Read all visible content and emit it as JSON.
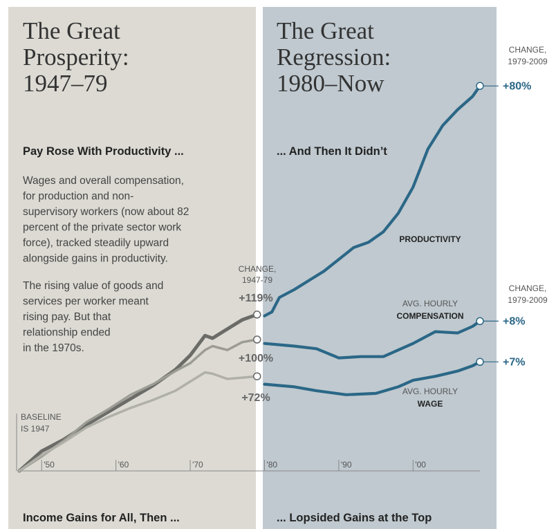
{
  "panels": [
    {
      "title_lines": [
        "The Great",
        "Prosperity:",
        "1947–79"
      ],
      "subhead": "Pay Rose With Productivity ...",
      "bottom": "Income Gains for All, Then ..."
    },
    {
      "title_lines": [
        "The Great",
        "Regression:",
        "1980–Now"
      ],
      "subhead": "... And Then It Didn’t",
      "bottom": "... Lopsided Gains at the Top"
    }
  ],
  "intro": {
    "paragraphs": [
      [
        "Wages and overall compensation,",
        "for production and non-",
        "supervisory workers (now about 82",
        "percent of the private sector work",
        "force), tracked steadily upward",
        "alongside gains in productivity."
      ],
      [
        "The rising value of goods and",
        "services per worker meant",
        "rising pay. But that",
        "relationship ended",
        "in the 1970s."
      ]
    ]
  },
  "chart_data": {
    "type": "line",
    "xlim": [
      1947,
      2009
    ],
    "ylim": [
      0,
      300
    ],
    "xticks": [
      {
        "value": 1950,
        "label": "'50"
      },
      {
        "value": 1960,
        "label": "'60"
      },
      {
        "value": 1970,
        "label": "'70"
      },
      {
        "value": 1980,
        "label": "'80"
      },
      {
        "value": 1990,
        "label": "'90"
      },
      {
        "value": 2000,
        "label": "'00"
      }
    ],
    "split_year": 1979,
    "baseline_label": [
      "BASELINE",
      "IS 1947"
    ],
    "change_labels": {
      "early": [
        "CHANGE,",
        "1947-79"
      ],
      "late": [
        "CHANGE,",
        "1979-2009"
      ]
    },
    "series": [
      {
        "label_lines": [
          "PRODUCTIVITY"
        ],
        "color": "#2b6787",
        "early_color": "#6b6b68",
        "change_early": "+119%",
        "change_late": "+80%",
        "x": [
          1947,
          1950,
          1953,
          1956,
          1959,
          1962,
          1965,
          1968,
          1970,
          1972,
          1973,
          1975,
          1977,
          1979,
          1980,
          1981,
          1982,
          1984,
          1986,
          1988,
          1990,
          1992,
          1994,
          1996,
          1998,
          2000,
          2002,
          2004,
          2006,
          2008,
          2009
        ],
        "values": [
          0,
          15,
          24,
          35,
          45,
          55,
          65,
          77,
          88,
          103,
          101,
          108,
          115,
          119,
          118,
          121,
          132,
          138,
          145,
          152,
          161,
          170,
          174,
          182,
          196,
          216,
          245,
          263,
          275,
          285,
          293
        ]
      },
      {
        "label_lines": [
          "AVG. HOURLY",
          "COMPENSATION"
        ],
        "color": "#2b6787",
        "early_color": "#9c9c95",
        "change_early": "+100%",
        "change_late": "+8%",
        "x": [
          1947,
          1950,
          1953,
          1956,
          1959,
          1962,
          1965,
          1968,
          1970,
          1972,
          1973,
          1975,
          1977,
          1979,
          1980,
          1984,
          1987,
          1990,
          1993,
          1996,
          1998,
          2000,
          2003,
          2006,
          2008,
          2009
        ],
        "values": [
          0,
          11,
          23,
          37,
          47,
          58,
          66,
          76,
          82,
          92,
          95,
          92,
          98,
          100,
          97,
          95,
          93,
          86,
          87,
          87,
          92,
          97,
          106,
          105,
          110,
          114
        ]
      },
      {
        "label_lines": [
          "AVG. HOURLY",
          "WAGE"
        ],
        "color": "#2b6787",
        "early_color": "#b0b0a8",
        "change_early": "+72%",
        "change_late": "+7%",
        "x": [
          1947,
          1950,
          1953,
          1956,
          1959,
          1962,
          1965,
          1968,
          1970,
          1972,
          1973,
          1975,
          1977,
          1979,
          1980,
          1984,
          1987,
          1991,
          1995,
          1998,
          2000,
          2003,
          2006,
          2008,
          2009
        ],
        "values": [
          0,
          12,
          22,
          33,
          41,
          48,
          54,
          61,
          68,
          75,
          74,
          70,
          71,
          72,
          66,
          64,
          61,
          58,
          59,
          64,
          69,
          72,
          76,
          80,
          83
        ]
      }
    ]
  }
}
